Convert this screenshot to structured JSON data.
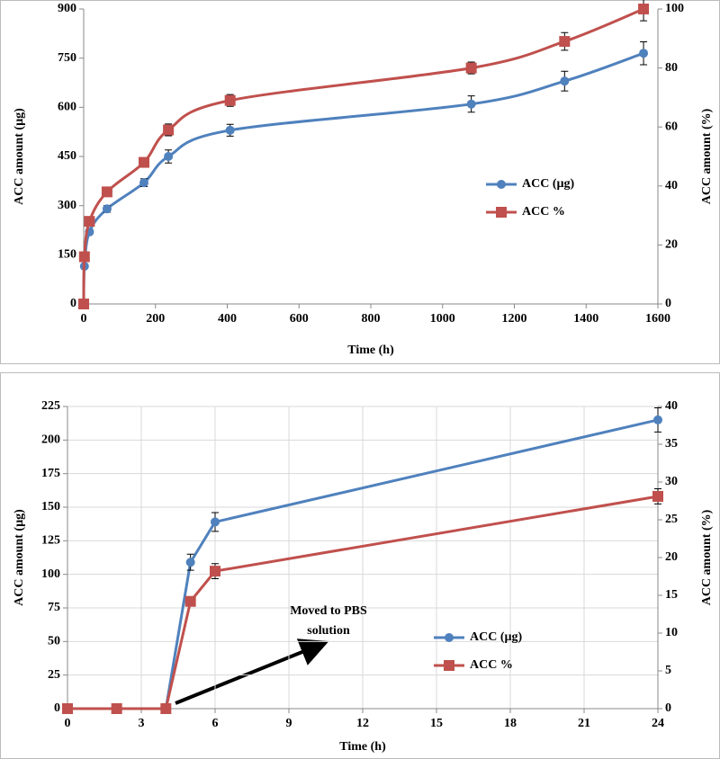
{
  "chart_data": [
    {
      "type": "line",
      "smooth": true,
      "xlabel": "Time  (h)",
      "ylabel": "ACC  amount  (µg)",
      "y2label": "ACC  amount  (%)",
      "x": [
        0,
        2,
        16,
        65,
        168,
        236,
        408,
        1080,
        1340,
        1560
      ],
      "series": [
        {
          "name": "ACC (µg)",
          "color": "#4f81bd",
          "marker": "circle",
          "values": [
            0,
            115,
            220,
            290,
            370,
            450,
            530,
            610,
            680,
            765
          ],
          "errors": [
            0,
            5,
            8,
            10,
            12,
            20,
            18,
            25,
            30,
            35
          ]
        },
        {
          "name": "ACC %",
          "color": "#c0504d",
          "marker": "square",
          "axis": "y2",
          "values": [
            0,
            16,
            28,
            38,
            48,
            59,
            69,
            80,
            89,
            100
          ],
          "errors": [
            0,
            1,
            1,
            1,
            1,
            2,
            2,
            2,
            3,
            4
          ]
        }
      ],
      "xlim": [
        0,
        1600
      ],
      "xticks": [
        0,
        200,
        400,
        600,
        800,
        1000,
        1200,
        1400,
        1600
      ],
      "ylim": [
        0,
        900
      ],
      "yticks": [
        0,
        150,
        300,
        450,
        600,
        750,
        900
      ],
      "y2lim": [
        0,
        100
      ],
      "y2ticks": [
        0,
        20,
        40,
        60,
        80,
        100
      ],
      "grid": false
    },
    {
      "type": "line",
      "smooth": false,
      "xlabel": "Time  (h)",
      "ylabel": "ACC  amount  (µg)",
      "y2label": "ACC  amount  (%)",
      "annotation": [
        "Moved  to PBS",
        "solution"
      ],
      "x": [
        0,
        2,
        4,
        5,
        6,
        24
      ],
      "series": [
        {
          "name": "ACC (µg)",
          "color": "#4f81bd",
          "marker": "circle",
          "values": [
            0,
            0,
            0,
            109,
            139,
            215
          ],
          "errors": [
            0,
            0,
            0,
            6,
            7,
            9
          ]
        },
        {
          "name": "ACC %",
          "color": "#c0504d",
          "marker": "square",
          "axis": "y2",
          "values": [
            0,
            0,
            0,
            14.2,
            18.2,
            28.1
          ],
          "errors": [
            0,
            0,
            0,
            0.5,
            1,
            1
          ]
        }
      ],
      "xlim": [
        0,
        24
      ],
      "xticks": [
        0,
        3,
        6,
        9,
        12,
        15,
        18,
        21,
        24
      ],
      "ylim": [
        0,
        225
      ],
      "yticks": [
        0,
        25,
        50,
        75,
        100,
        125,
        150,
        175,
        200,
        225
      ],
      "y2lim": [
        0,
        40
      ],
      "y2ticks": [
        0,
        5,
        10,
        15,
        20,
        25,
        30,
        35,
        40
      ],
      "grid": true
    }
  ]
}
